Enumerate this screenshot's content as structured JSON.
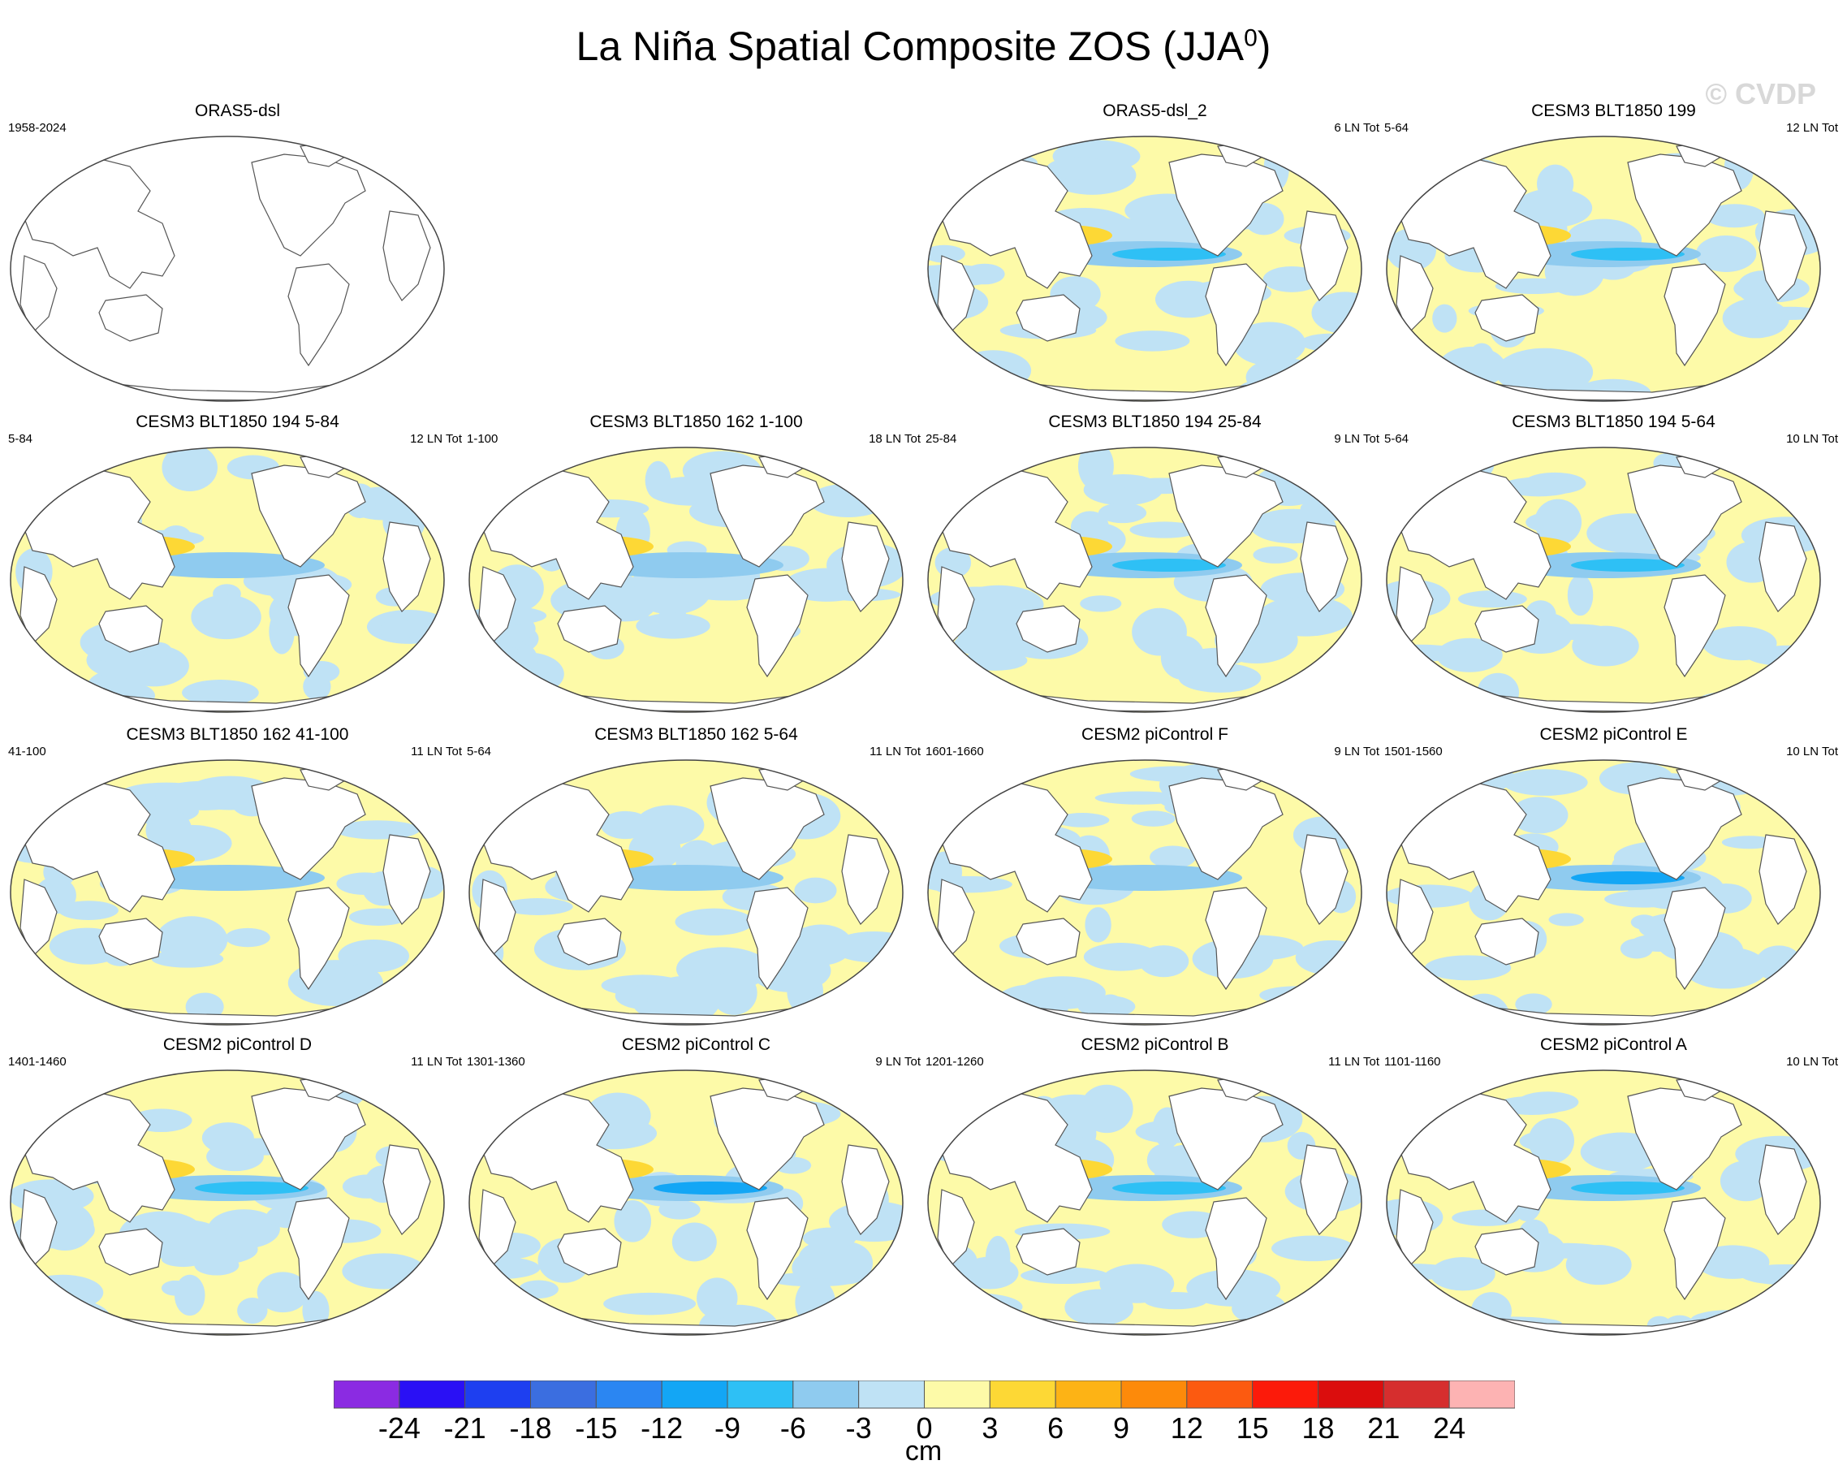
{
  "title": {
    "text": "La Niña Spatial Composite ZOS (JJA",
    "sup": "0",
    "close": ")"
  },
  "watermark": "© CVDP",
  "panels": [
    {
      "title": "ORAS5-dsl",
      "left": "1958-2024",
      "right": "",
      "empty": true,
      "pattern": 0
    },
    {
      "title": "ORAS5-dsl_2",
      "left": "",
      "right": "6 LN Tot",
      "empty": false,
      "pattern": 1
    },
    {
      "title": "CESM3 BLT1850 199",
      "left": "5-64",
      "right": "12 LN Tot",
      "empty": false,
      "pattern": 2
    },
    {
      "title": "CESM3 BLT1850 194 5-84",
      "left": "5-84",
      "right": "12 LN Tot",
      "empty": false,
      "pattern": 3
    },
    {
      "title": "CESM3 BLT1850 162 1-100",
      "left": "1-100",
      "right": "18 LN Tot",
      "empty": false,
      "pattern": 4
    },
    {
      "title": "CESM3 BLT1850 194 25-84",
      "left": "25-84",
      "right": "9 LN Tot",
      "empty": false,
      "pattern": 5
    },
    {
      "title": "CESM3 BLT1850 194 5-64",
      "left": "5-64",
      "right": "10 LN Tot",
      "empty": false,
      "pattern": 6
    },
    {
      "title": "CESM3 BLT1850 162 41-100",
      "left": "41-100",
      "right": "11 LN Tot",
      "empty": false,
      "pattern": 7
    },
    {
      "title": "CESM3 BLT1850 162 5-64",
      "left": "5-64",
      "right": "11 LN Tot",
      "empty": false,
      "pattern": 8
    },
    {
      "title": "CESM2 piControl F",
      "left": "1601-1660",
      "right": "9 LN Tot",
      "empty": false,
      "pattern": 9
    },
    {
      "title": "CESM2 piControl E",
      "left": "1501-1560",
      "right": "10 LN Tot",
      "empty": false,
      "pattern": 10
    },
    {
      "title": "CESM2 piControl D",
      "left": "1401-1460",
      "right": "11 LN Tot",
      "empty": false,
      "pattern": 11
    },
    {
      "title": "CESM2 piControl C",
      "left": "1301-1360",
      "right": "9 LN Tot",
      "empty": false,
      "pattern": 12
    },
    {
      "title": "CESM2 piControl B",
      "left": "1201-1260",
      "right": "11 LN Tot",
      "empty": false,
      "pattern": 13
    },
    {
      "title": "CESM2 piControl A",
      "left": "1101-1160",
      "right": "10 LN Tot",
      "empty": false,
      "pattern": 14
    }
  ],
  "colorbar": {
    "unit": "cm",
    "labels": [
      "-24",
      "-21",
      "-18",
      "-15",
      "-12",
      "-9",
      "-6",
      "-3",
      "0",
      "3",
      "6",
      "9",
      "12",
      "15",
      "18",
      "21",
      "24"
    ],
    "colors": [
      "#8b2be2",
      "#2a10f5",
      "#1e3ff0",
      "#3b6ee0",
      "#2b86f2",
      "#13a6f5",
      "#2ec0f5",
      "#8fcbef",
      "#bfe2f5",
      "#fdfaa8",
      "#fdd835",
      "#fdb315",
      "#fd8a0a",
      "#fc5a10",
      "#fc1a0a",
      "#db0d0d",
      "#d62e2e",
      "#fdb3b3"
    ]
  }
}
